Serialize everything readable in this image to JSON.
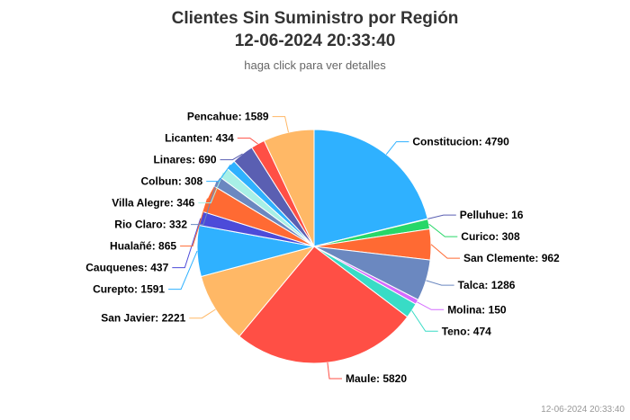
{
  "header": {
    "title_line1": "Clientes Sin Suministro por Región",
    "title_line2": "12-06-2024 20:33:40",
    "subtitle": "haga click para ver detalles"
  },
  "footer": {
    "timestamp": "12-06-2024 20:33:40"
  },
  "chart_data": {
    "type": "pie",
    "title": "Clientes Sin Suministro por Región",
    "subtitle": "haga click para ver detalles",
    "series": [
      {
        "name": "Constitucion",
        "value": 4790,
        "color": "#2FB1FF"
      },
      {
        "name": "Pelluhue",
        "value": 16,
        "color": "#5A5FB2"
      },
      {
        "name": "Curico",
        "value": 308,
        "color": "#27D768"
      },
      {
        "name": "San Clemente",
        "value": 962,
        "color": "#FF6A33"
      },
      {
        "name": "Talca",
        "value": 1286,
        "color": "#6B88C0"
      },
      {
        "name": "Molina",
        "value": 150,
        "color": "#D46BFF"
      },
      {
        "name": "Teno",
        "value": 474,
        "color": "#38DCC6"
      },
      {
        "name": "Maule",
        "value": 5820,
        "color": "#FF4F45"
      },
      {
        "name": "San Javier",
        "value": 2221,
        "color": "#FFB866"
      },
      {
        "name": "Curepto",
        "value": 1591,
        "color": "#2FB1FF"
      },
      {
        "name": "Cauquenes",
        "value": 437,
        "color": "#4C4BD9"
      },
      {
        "name": "Hualañé",
        "value": 865,
        "color": "#FF6A33"
      },
      {
        "name": "Rio Claro",
        "value": 332,
        "color": "#6B88C0"
      },
      {
        "name": "Villa Alegre",
        "value": 346,
        "color": "#A8F0E6"
      },
      {
        "name": "Colbun",
        "value": 308,
        "color": "#2FB1FF"
      },
      {
        "name": "Linares",
        "value": 690,
        "color": "#5A5FB2"
      },
      {
        "name": "Licanten",
        "value": 434,
        "color": "#FF4F45"
      },
      {
        "name": "Pencahue",
        "value": 1589,
        "color": "#FFB866"
      }
    ]
  }
}
